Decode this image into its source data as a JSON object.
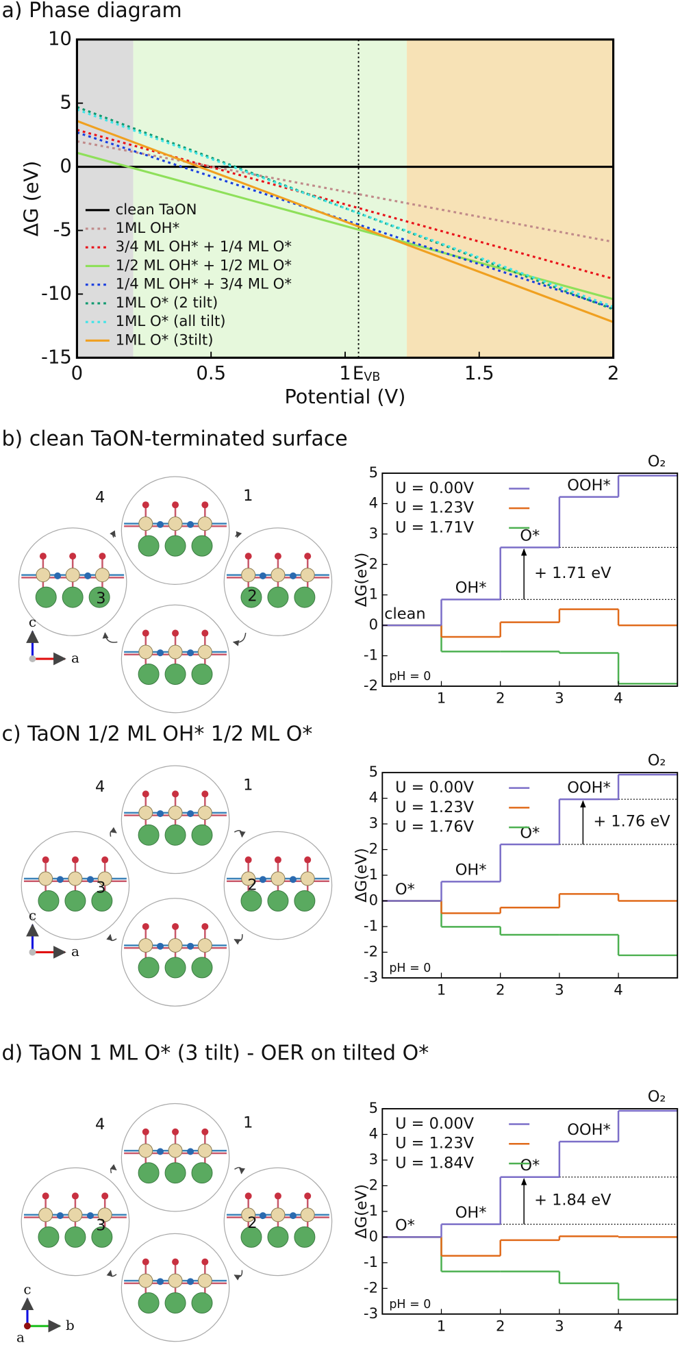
{
  "chart_data": [
    {
      "type": "line",
      "title": "a) Phase diagram",
      "xlabel": "Potential (V)",
      "ylabel": "ΔG (eV)",
      "xlim": [
        0,
        2
      ],
      "ylim": [
        -15,
        10
      ],
      "xticks": [
        0,
        0.5,
        1,
        1.5,
        2
      ],
      "yticks": [
        10,
        5,
        0,
        -5,
        -10,
        -15
      ],
      "legend": "lower left",
      "regions": [
        {
          "from": 0,
          "to": 0.21,
          "color": "#dcdcdc"
        },
        {
          "from": 0.21,
          "to": 1.23,
          "color": "#e6f8dc"
        },
        {
          "from": 1.23,
          "to": 2,
          "color": "#f7e2b6"
        }
      ],
      "vline": {
        "x": 1.05,
        "label": "E",
        "label_sub": "VB"
      },
      "x": [
        0,
        2
      ],
      "series": [
        {
          "name": "clean TaON",
          "color": "#000000",
          "dashed": false,
          "values": [
            0,
            0
          ]
        },
        {
          "name": "1ML OH*",
          "color": "#c08a8a",
          "dashed": true,
          "values": [
            2.0,
            -5.9
          ]
        },
        {
          "name": "3/4 ML OH* + 1/4 ML O*",
          "color": "#e8121a",
          "dashed": true,
          "values": [
            2.9,
            -8.8
          ]
        },
        {
          "name": "1/2 ML OH* + 1/2 ML O*",
          "color": "#8ee05a",
          "dashed": false,
          "values": [
            1.1,
            -10.4
          ]
        },
        {
          "name": "1/4 ML OH* + 3/4 ML O*",
          "color": "#1a3fe0",
          "dashed": true,
          "values": [
            2.7,
            -11.1
          ]
        },
        {
          "name": "1ML O* (2 tilt)",
          "color": "#109a70",
          "dashed": true,
          "values": [
            4.7,
            -11.2
          ]
        },
        {
          "name": "1ML O* (all tilt)",
          "color": "#40e4e8",
          "dashed": true,
          "values": [
            4.5,
            -11.0
          ]
        },
        {
          "name": "1ML O* (3tilt)",
          "color": "#f0a020",
          "dashed": false,
          "values": [
            3.6,
            -12.2
          ]
        }
      ]
    },
    {
      "type": "step",
      "title": "b) clean TaON-terminated surface",
      "ylabel": "ΔG(eV)",
      "xlim": [
        0,
        5
      ],
      "ylim": [
        -2,
        5
      ],
      "xticks": [
        1,
        2,
        3,
        4
      ],
      "yticks": [
        -2,
        -1,
        0,
        1,
        2,
        3,
        4,
        5
      ],
      "legend": "upper left",
      "x": [
        0,
        1,
        2,
        3,
        4
      ],
      "step_labels": [
        "clean",
        "OH*",
        "O*",
        "OOH*",
        "O₂"
      ],
      "annotation": "+ 1.71 eV",
      "note": "pH = 0",
      "series": [
        {
          "name": "U = 0.00V",
          "color": "#7b6ec8",
          "values": [
            0,
            0.85,
            2.56,
            4.22,
            4.92
          ]
        },
        {
          "name": "U = 1.23V",
          "color": "#e06a1a",
          "values": [
            0,
            -0.38,
            0.1,
            0.53,
            0
          ]
        },
        {
          "name": "U = 1.71V",
          "color": "#4cb050",
          "values": [
            0,
            -0.86,
            -0.86,
            -0.91,
            -1.92
          ]
        }
      ]
    },
    {
      "type": "step",
      "title": "c) TaON 1/2 ML OH* 1/2 ML O*",
      "ylabel": "ΔG(eV)",
      "xlim": [
        0,
        5
      ],
      "ylim": [
        -3,
        5
      ],
      "xticks": [
        1,
        2,
        3,
        4
      ],
      "yticks": [
        -3,
        -2,
        -1,
        0,
        1,
        2,
        3,
        4,
        5
      ],
      "legend": "upper left",
      "x": [
        0,
        1,
        2,
        3,
        4
      ],
      "step_labels": [
        "O*",
        "OH*",
        "O*",
        "OOH*",
        "O₂"
      ],
      "annotation": "+ 1.76 eV",
      "note": "pH = 0",
      "series": [
        {
          "name": "U = 0.00V",
          "color": "#7b6ec8",
          "values": [
            0,
            0.75,
            2.2,
            3.96,
            4.92
          ]
        },
        {
          "name": "U = 1.23V",
          "color": "#e06a1a",
          "values": [
            0,
            -0.48,
            -0.26,
            0.27,
            0
          ]
        },
        {
          "name": "U = 1.76V",
          "color": "#4cb050",
          "values": [
            0,
            -1.01,
            -1.32,
            -1.32,
            -2.12
          ]
        }
      ]
    },
    {
      "type": "step",
      "title": "d) TaON 1 ML O* (3 tilt) - OER on tilted O*",
      "ylabel": "ΔG(eV)",
      "xlim": [
        0,
        5
      ],
      "ylim": [
        -3,
        5
      ],
      "xticks": [
        1,
        2,
        3,
        4
      ],
      "yticks": [
        -3,
        -2,
        -1,
        0,
        1,
        2,
        3,
        4,
        5
      ],
      "legend": "upper left",
      "x": [
        0,
        1,
        2,
        3,
        4
      ],
      "step_labels": [
        "O*",
        "OH*",
        "O*",
        "OOH*",
        "O₂"
      ],
      "annotation": "+ 1.84 eV",
      "note": "pH = 0",
      "series": [
        {
          "name": "U = 0.00V",
          "color": "#7b6ec8",
          "values": [
            0,
            0.5,
            2.34,
            3.72,
            4.92
          ]
        },
        {
          "name": "U = 1.23V",
          "color": "#e06a1a",
          "values": [
            0,
            -0.73,
            -0.12,
            0.03,
            0
          ]
        },
        {
          "name": "U = 1.84V",
          "color": "#4cb050",
          "values": [
            0,
            -1.34,
            -1.34,
            -1.8,
            -2.44
          ]
        }
      ]
    }
  ],
  "structures": [
    {
      "steps": [
        "1",
        "2",
        "3",
        "4"
      ],
      "axes": [
        "c",
        "a"
      ]
    },
    {
      "steps": [
        "1",
        "2",
        "3",
        "4"
      ],
      "axes": [
        "c",
        "a"
      ]
    },
    {
      "steps": [
        "1",
        "2",
        "3",
        "4"
      ],
      "axes": [
        "c",
        "b",
        "a"
      ]
    }
  ]
}
